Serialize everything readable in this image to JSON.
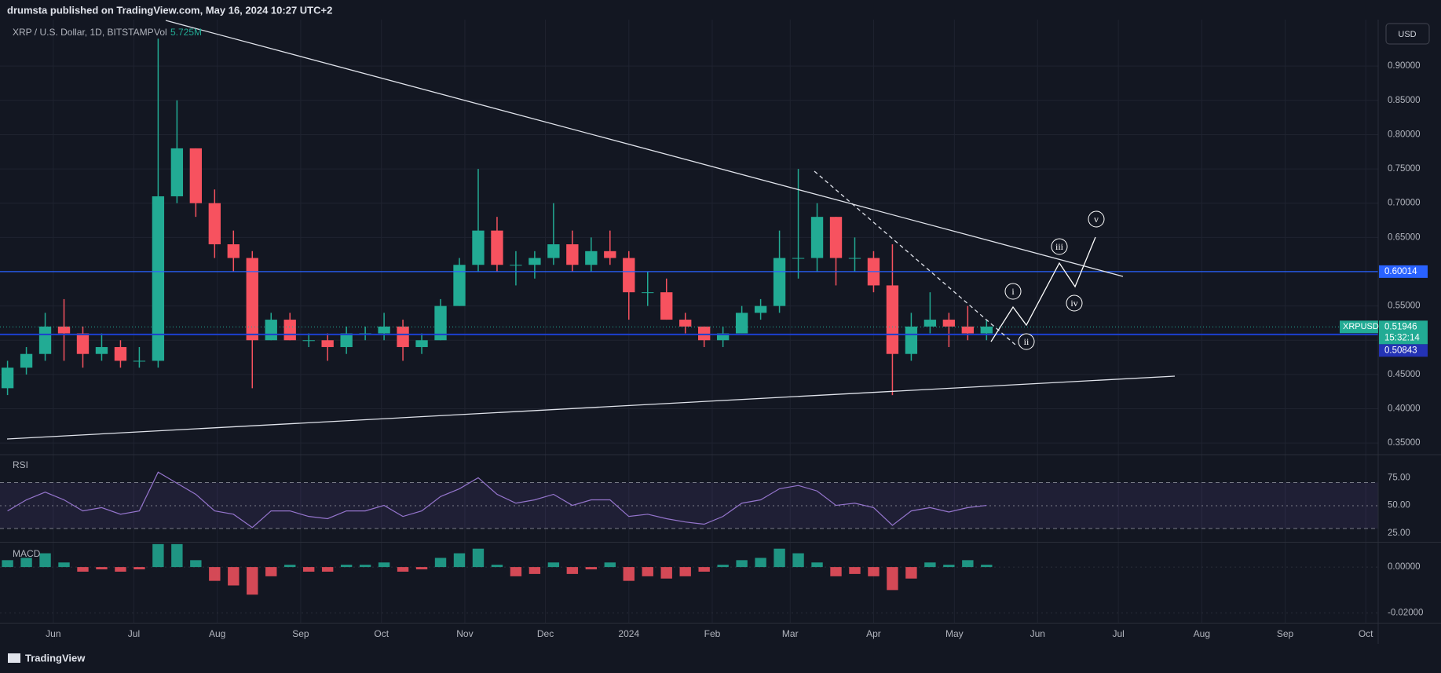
{
  "page": {
    "publisher": "drumsta published on TradingView.com, May 16, 2024 10:27 UTC+2",
    "brand": "TradingView"
  },
  "chart_data": {
    "type": "candlestick",
    "title": "XRP / U.S. Dollar, 1D, BITSTAMP",
    "volume_label": "Vol",
    "volume": "5.725M",
    "currency": "USD",
    "symbol": "XRPUSD",
    "countdown": "15:32:14",
    "up_color": "#22ab94",
    "down_color": "#f7525f",
    "grid": true,
    "xlim": [
      -0.4,
      72.8
    ],
    "xticks": [
      {
        "value": 2.43,
        "label": "Jun"
      },
      {
        "value": 6.71,
        "label": "Jul"
      },
      {
        "value": 11.14,
        "label": "Aug"
      },
      {
        "value": 15.57,
        "label": "Sep"
      },
      {
        "value": 19.86,
        "label": "Oct"
      },
      {
        "value": 24.29,
        "label": "Nov"
      },
      {
        "value": 28.57,
        "label": "Dec"
      },
      {
        "value": 33.0,
        "label": "2024"
      },
      {
        "value": 37.43,
        "label": "Feb"
      },
      {
        "value": 41.57,
        "label": "Mar"
      },
      {
        "value": 46.0,
        "label": "Apr"
      },
      {
        "value": 50.29,
        "label": "May"
      },
      {
        "value": 54.71,
        "label": "Jun"
      },
      {
        "value": 59.0,
        "label": "Jul"
      },
      {
        "value": 63.43,
        "label": "Aug"
      },
      {
        "value": 67.86,
        "label": "Sep"
      },
      {
        "value": 72.14,
        "label": "Oct"
      }
    ],
    "ylim": [
      0.333,
      0.967
    ],
    "yticks": [
      {
        "value": 0.35,
        "label": "0.35000"
      },
      {
        "value": 0.4,
        "label": "0.40000"
      },
      {
        "value": 0.45,
        "label": "0.45000"
      },
      {
        "value": 0.5,
        "label": "0.50000"
      },
      {
        "value": 0.55,
        "label": "0.55000"
      },
      {
        "value": 0.6,
        "label": "0.60000"
      },
      {
        "value": 0.65,
        "label": "0.65000"
      },
      {
        "value": 0.7,
        "label": "0.70000"
      },
      {
        "value": 0.75,
        "label": "0.75000"
      },
      {
        "value": 0.8,
        "label": "0.80000"
      },
      {
        "value": 0.85,
        "label": "0.85000"
      },
      {
        "value": 0.9,
        "label": "0.90000"
      }
    ],
    "open": [
      0.43,
      0.46,
      0.48,
      0.52,
      0.51,
      0.48,
      0.49,
      0.47,
      0.47,
      0.71,
      0.78,
      0.7,
      0.64,
      0.62,
      0.5,
      0.53,
      0.5,
      0.5,
      0.49,
      0.51,
      0.51,
      0.52,
      0.49,
      0.5,
      0.55,
      0.61,
      0.66,
      0.61,
      0.61,
      0.62,
      0.64,
      0.61,
      0.63,
      0.62,
      0.57,
      0.57,
      0.53,
      0.52,
      0.5,
      0.51,
      0.54,
      0.55,
      0.62,
      0.62,
      0.68,
      0.62,
      0.62,
      0.58,
      0.48,
      0.52,
      0.53,
      0.52,
      0.51
    ],
    "high": [
      0.47,
      0.49,
      0.54,
      0.56,
      0.52,
      0.51,
      0.5,
      0.49,
      0.94,
      0.85,
      0.78,
      0.72,
      0.66,
      0.63,
      0.54,
      0.54,
      0.51,
      0.51,
      0.52,
      0.52,
      0.54,
      0.53,
      0.51,
      0.56,
      0.62,
      0.75,
      0.68,
      0.63,
      0.63,
      0.7,
      0.66,
      0.65,
      0.66,
      0.63,
      0.6,
      0.59,
      0.54,
      0.52,
      0.52,
      0.55,
      0.56,
      0.66,
      0.75,
      0.7,
      0.68,
      0.65,
      0.63,
      0.64,
      0.54,
      0.57,
      0.54,
      0.55,
      0.53
    ],
    "low": [
      0.42,
      0.45,
      0.47,
      0.47,
      0.46,
      0.47,
      0.46,
      0.46,
      0.46,
      0.7,
      0.68,
      0.62,
      0.6,
      0.43,
      0.5,
      0.5,
      0.49,
      0.47,
      0.48,
      0.5,
      0.5,
      0.47,
      0.48,
      0.5,
      0.55,
      0.6,
      0.6,
      0.58,
      0.59,
      0.61,
      0.6,
      0.6,
      0.61,
      0.53,
      0.55,
      0.53,
      0.51,
      0.49,
      0.49,
      0.51,
      0.53,
      0.54,
      0.59,
      0.6,
      0.58,
      0.6,
      0.57,
      0.42,
      0.47,
      0.51,
      0.49,
      0.5,
      0.5
    ],
    "close": [
      0.46,
      0.48,
      0.52,
      0.51,
      0.48,
      0.49,
      0.47,
      0.47,
      0.71,
      0.78,
      0.7,
      0.64,
      0.62,
      0.5,
      0.53,
      0.5,
      0.5,
      0.49,
      0.51,
      0.51,
      0.52,
      0.49,
      0.5,
      0.55,
      0.61,
      0.66,
      0.61,
      0.61,
      0.62,
      0.64,
      0.61,
      0.63,
      0.62,
      0.57,
      0.57,
      0.53,
      0.52,
      0.5,
      0.51,
      0.54,
      0.55,
      0.62,
      0.62,
      0.68,
      0.62,
      0.62,
      0.58,
      0.48,
      0.52,
      0.53,
      0.52,
      0.51,
      0.52
    ],
    "level_lines": [
      0.60014,
      0.50843
    ],
    "last_price": 0.51946,
    "annotations": [
      "i",
      "ii",
      "iii",
      "iv",
      "v"
    ],
    "indicators": [
      {
        "name": "RSI",
        "color": "#9575cd",
        "ylim": [
          16.7,
          95.8
        ],
        "yticks": [
          {
            "value": 25,
            "label": "25.00"
          },
          {
            "value": 50,
            "label": "50.00"
          },
          {
            "value": 75,
            "label": "75.00"
          }
        ],
        "values": [
          45,
          55,
          62,
          55,
          45,
          48,
          42,
          45,
          80,
          70,
          60,
          45,
          42,
          30,
          45,
          45,
          40,
          38,
          45,
          45,
          50,
          40,
          45,
          58,
          65,
          75,
          60,
          52,
          55,
          60,
          50,
          55,
          55,
          40,
          42,
          38,
          35,
          33,
          40,
          52,
          55,
          65,
          68,
          63,
          50,
          52,
          48,
          32,
          45,
          48,
          44,
          48,
          50
        ]
      },
      {
        "name": "MACD",
        "ylim": [
          -0.0244,
          0.0108
        ],
        "yticks": [
          {
            "value": 0,
            "label": "0.00000"
          },
          {
            "value": -0.02,
            "label": "-0.02000"
          }
        ],
        "values": [
          0.003,
          0.004,
          0.006,
          0.002,
          -0.002,
          -0.001,
          -0.002,
          -0.001,
          0.01,
          0.01,
          0.003,
          -0.006,
          -0.008,
          -0.012,
          -0.004,
          0.001,
          -0.002,
          -0.002,
          0.001,
          0.001,
          0.002,
          -0.002,
          -0.001,
          0.004,
          0.006,
          0.008,
          0.001,
          -0.004,
          -0.003,
          0.002,
          -0.003,
          -0.001,
          0.002,
          -0.006,
          -0.004,
          -0.005,
          -0.004,
          -0.002,
          0.001,
          0.003,
          0.004,
          0.008,
          0.006,
          0.002,
          -0.004,
          -0.003,
          -0.004,
          -0.01,
          -0.005,
          0.002,
          0.001,
          0.003,
          0.001
        ]
      }
    ]
  }
}
